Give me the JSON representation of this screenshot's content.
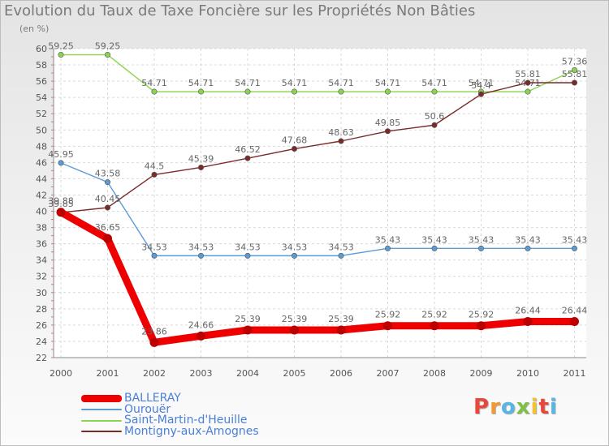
{
  "title": "Evolution du Taux de Taxe Foncière sur les Propriétés Non Bâties",
  "unit_label": "(en %)",
  "logo": {
    "letters": [
      "P",
      "r",
      "o",
      "x",
      "i",
      "t",
      "i"
    ],
    "colors": [
      "#e8483c",
      "#f29a2e",
      "#56b6e5",
      "#7dc243",
      "#f2c230",
      "#e8483c",
      "#56b6e5"
    ]
  },
  "chart_data": {
    "type": "line",
    "title": "Evolution du Taux de Taxe Foncière sur les Propriétés Non Bâties",
    "ylabel": "(en %)",
    "x": [
      "2000",
      "2001",
      "2002",
      "2003",
      "2004",
      "2005",
      "2006",
      "2007",
      "2008",
      "2009",
      "2010",
      "2011"
    ],
    "ylim": [
      22,
      60
    ],
    "yticks": [
      22,
      24,
      26,
      28,
      30,
      32,
      34,
      36,
      38,
      40,
      42,
      44,
      46,
      48,
      50,
      52,
      54,
      56,
      58,
      60
    ],
    "grid": true,
    "legend_position": "bottom-left",
    "series": [
      {
        "name": "BALLERAY",
        "color": "#ee0000",
        "emphasis": true,
        "values": [
          39.88,
          36.65,
          23.86,
          24.66,
          25.39,
          25.39,
          25.39,
          25.92,
          25.92,
          25.92,
          26.44,
          26.44
        ],
        "labels": [
          "39.88",
          "36.65",
          "23.86",
          "24.66",
          "25.39",
          "25.39",
          "25.39",
          "25.92",
          "25.92",
          "25.92",
          "26.44",
          "26.44"
        ]
      },
      {
        "name": "Ourouër",
        "color": "#5b9bd5",
        "values": [
          45.95,
          43.58,
          34.53,
          34.53,
          34.53,
          34.53,
          34.53,
          35.43,
          35.43,
          35.43,
          35.43,
          35.43
        ],
        "labels": [
          "45.95",
          "43.58",
          "34.53",
          "34.53",
          "34.53",
          "34.53",
          "34.53",
          "35.43",
          "35.43",
          "35.43",
          "35.43",
          "35.43"
        ]
      },
      {
        "name": "Saint-Martin-d'Heuille",
        "color": "#8bd44f",
        "values": [
          59.25,
          59.25,
          54.71,
          54.71,
          54.71,
          54.71,
          54.71,
          54.71,
          54.71,
          54.71,
          54.71,
          57.36
        ],
        "labels": [
          "59.25",
          "59.25",
          "54.71",
          "54.71",
          "54.71",
          "54.71",
          "54.71",
          "54.71",
          "54.71",
          "54.71",
          "54.71",
          "57.36"
        ]
      },
      {
        "name": "Montigny-aux-Amognes",
        "color": "#7b2a2a",
        "values": [
          39.85,
          40.45,
          44.5,
          45.39,
          46.52,
          47.68,
          48.63,
          49.85,
          50.6,
          54.4,
          55.81,
          55.81
        ],
        "labels": [
          "39.85",
          "40.45",
          "44.5",
          "45.39",
          "46.52",
          "47.68",
          "48.63",
          "49.85",
          "50.6",
          "54.4",
          "55.81",
          "55.81"
        ]
      }
    ]
  }
}
